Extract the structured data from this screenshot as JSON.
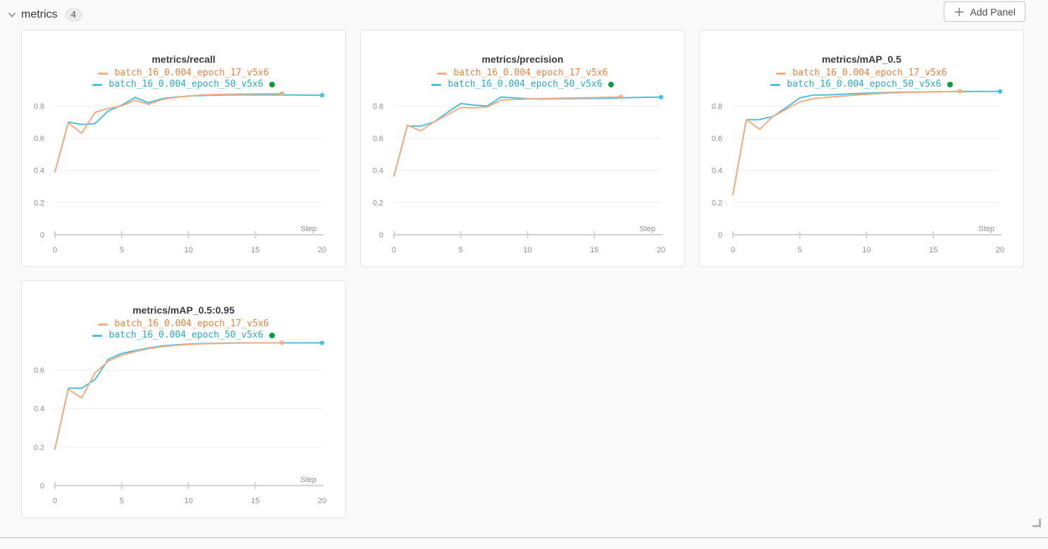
{
  "section": {
    "title": "metrics",
    "panel_count": "4",
    "add_panel": {
      "label": "Add Panel",
      "icon": "plus-icon"
    },
    "collapse_icon": "chevron-down"
  },
  "colors": {
    "background": "#fafafa",
    "panel_background": "#ffffff",
    "panel_border": "#e2e2e2",
    "grid_line": "#ededed",
    "axis_line": "#d2d2d6",
    "axis_text": "#8d8d8d",
    "title_text": "#3b3b3b",
    "run1_line": "#f1ae85",
    "run1_label": "#e8823e",
    "run2_line": "#4fbedb",
    "run2_label": "#2ba8c9",
    "active_run_dot": "#0a9d3f"
  },
  "chart_data": [
    {
      "type": "line",
      "title": "metrics/recall",
      "xlabel": "Step",
      "xlim": [
        0,
        20
      ],
      "xticks": [
        0,
        5,
        10,
        15,
        20
      ],
      "xtick_marks": [
        0,
        5,
        10,
        15
      ],
      "yticks": [
        0,
        0.2,
        0.4,
        0.6,
        0.8
      ],
      "ylim": [
        0,
        1.27
      ],
      "grid": "horizontal",
      "legend_position": "top",
      "series": [
        {
          "name": "batch_16_0.004_epoch_17_v5x6",
          "color": "#f1ae85",
          "label_color": "#e8823e",
          "active": false,
          "end_marker": true,
          "values": [
            0.39,
            0.695,
            0.63,
            0.76,
            0.785,
            0.8,
            0.835,
            0.81,
            0.84,
            0.853,
            0.862,
            0.868,
            0.871,
            0.873,
            0.874,
            0.875,
            0.876,
            0.877
          ]
        },
        {
          "name": "batch_16_0.004_epoch_50_v5x6",
          "color": "#4fbedb",
          "label_color": "#2ba8c9",
          "active": true,
          "end_marker": true,
          "values": [
            0.39,
            0.7,
            0.685,
            0.69,
            0.77,
            0.805,
            0.853,
            0.82,
            0.845,
            0.855,
            0.861,
            0.865,
            0.867,
            0.868,
            0.869,
            0.869,
            0.869,
            0.868,
            0.868,
            0.867,
            0.866
          ]
        }
      ]
    },
    {
      "type": "line",
      "title": "metrics/precision",
      "xlabel": "Step",
      "xlim": [
        0,
        20
      ],
      "xticks": [
        0,
        5,
        10,
        15,
        20
      ],
      "xtick_marks": [
        0,
        5,
        10,
        15
      ],
      "yticks": [
        0,
        0.2,
        0.4,
        0.6,
        0.8
      ],
      "ylim": [
        0,
        1.27
      ],
      "grid": "horizontal",
      "legend_position": "top",
      "series": [
        {
          "name": "batch_16_0.004_epoch_17_v5x6",
          "color": "#f1ae85",
          "label_color": "#e8823e",
          "active": false,
          "end_marker": true,
          "values": [
            0.365,
            0.68,
            0.645,
            0.7,
            0.745,
            0.79,
            0.788,
            0.795,
            0.835,
            0.84,
            0.843,
            0.845,
            0.847,
            0.849,
            0.851,
            0.852,
            0.854,
            0.856
          ]
        },
        {
          "name": "batch_16_0.004_epoch_50_v5x6",
          "color": "#4fbedb",
          "label_color": "#2ba8c9",
          "active": true,
          "end_marker": true,
          "values": [
            0.365,
            0.675,
            0.675,
            0.7,
            0.76,
            0.815,
            0.805,
            0.8,
            0.855,
            0.85,
            0.845,
            0.843,
            0.844,
            0.845,
            0.846,
            0.847,
            0.848,
            0.85,
            0.852,
            0.854,
            0.855
          ]
        }
      ]
    },
    {
      "type": "line",
      "title": "metrics/mAP_0.5",
      "xlabel": "Step",
      "xlim": [
        0,
        20
      ],
      "xticks": [
        0,
        5,
        10,
        15,
        20
      ],
      "xtick_marks": [
        0,
        5,
        10,
        15
      ],
      "yticks": [
        0,
        0.2,
        0.4,
        0.6,
        0.8
      ],
      "ylim": [
        0,
        1.27
      ],
      "grid": "horizontal",
      "legend_position": "top",
      "series": [
        {
          "name": "batch_16_0.004_epoch_17_v5x6",
          "color": "#f1ae85",
          "label_color": "#e8823e",
          "active": false,
          "end_marker": true,
          "values": [
            0.25,
            0.715,
            0.655,
            0.735,
            0.78,
            0.825,
            0.845,
            0.853,
            0.86,
            0.866,
            0.872,
            0.877,
            0.881,
            0.884,
            0.886,
            0.888,
            0.889,
            0.891
          ]
        },
        {
          "name": "batch_16_0.004_epoch_50_v5x6",
          "color": "#4fbedb",
          "label_color": "#2ba8c9",
          "active": true,
          "end_marker": true,
          "values": [
            0.25,
            0.715,
            0.715,
            0.735,
            0.79,
            0.85,
            0.868,
            0.868,
            0.872,
            0.876,
            0.879,
            0.882,
            0.884,
            0.886,
            0.887,
            0.888,
            0.889,
            0.889,
            0.89,
            0.89,
            0.89
          ]
        }
      ]
    },
    {
      "type": "line",
      "title": "metrics/mAP_0.5:0.95",
      "xlabel": "Step",
      "xlim": [
        0,
        20
      ],
      "xticks": [
        0,
        5,
        10,
        15,
        20
      ],
      "xtick_marks": [
        0,
        5,
        10,
        15
      ],
      "yticks": [
        0,
        0.2,
        0.4,
        0.6
      ],
      "ylim": [
        0,
        1.06
      ],
      "grid": "horizontal",
      "legend_position": "top",
      "series": [
        {
          "name": "batch_16_0.004_epoch_17_v5x6",
          "color": "#f1ae85",
          "label_color": "#e8823e",
          "active": false,
          "end_marker": true,
          "values": [
            0.19,
            0.5,
            0.455,
            0.585,
            0.645,
            0.675,
            0.695,
            0.71,
            0.72,
            0.727,
            0.732,
            0.735,
            0.737,
            0.738,
            0.739,
            0.74,
            0.74,
            0.741
          ]
        },
        {
          "name": "batch_16_0.004_epoch_50_v5x6",
          "color": "#4fbedb",
          "label_color": "#2ba8c9",
          "active": true,
          "end_marker": true,
          "values": [
            0.19,
            0.505,
            0.505,
            0.55,
            0.655,
            0.685,
            0.7,
            0.713,
            0.724,
            0.73,
            0.734,
            0.737,
            0.738,
            0.739,
            0.74,
            0.74,
            0.74,
            0.74,
            0.74,
            0.74,
            0.74
          ]
        }
      ]
    }
  ]
}
